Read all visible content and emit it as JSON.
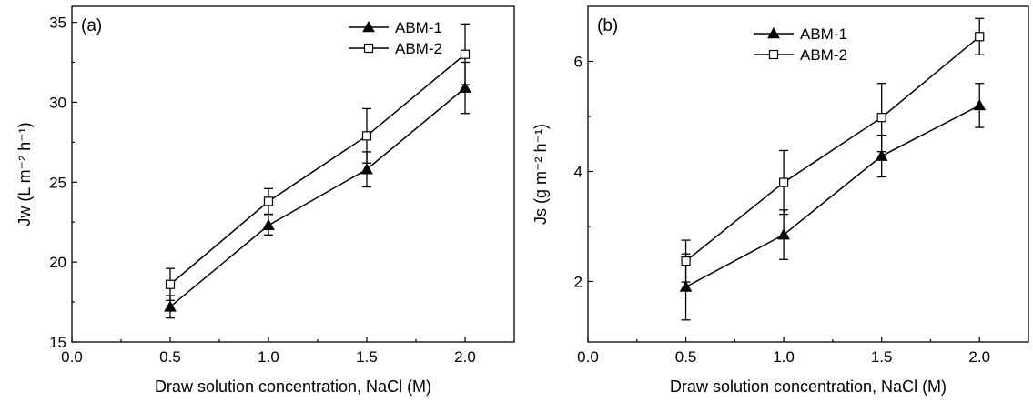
{
  "chart_data": [
    {
      "type": "line",
      "panel_label": "(a)",
      "xlabel": "Draw solution concentration, NaCl (M)",
      "ylabel": "Jw (L m⁻² h⁻¹)",
      "xlim": [
        0.0,
        2.25
      ],
      "ylim": [
        15,
        36
      ],
      "xticks": [
        0.0,
        0.5,
        1.0,
        1.5,
        2.0
      ],
      "xtick_labels": [
        "0.0",
        "0.5",
        "1.0",
        "1.5",
        "2.0"
      ],
      "yticks": [
        15,
        20,
        25,
        30,
        35
      ],
      "ytick_labels": [
        "15",
        "20",
        "25",
        "30",
        "35"
      ],
      "legend_position": "top-right",
      "series": [
        {
          "name": "ABM-1",
          "marker": "filled-triangle",
          "x": [
            0.5,
            1.0,
            1.5,
            2.0
          ],
          "y": [
            17.2,
            22.3,
            25.8,
            30.9
          ],
          "err": [
            0.7,
            0.6,
            1.1,
            1.6
          ]
        },
        {
          "name": "ABM-2",
          "marker": "open-square",
          "x": [
            0.5,
            1.0,
            1.5,
            2.0
          ],
          "y": [
            18.6,
            23.8,
            27.9,
            33.0
          ],
          "err": [
            1.0,
            0.8,
            1.7,
            1.9
          ]
        }
      ]
    },
    {
      "type": "line",
      "panel_label": "(b)",
      "xlabel": "Draw solution concentration, NaCl (M)",
      "ylabel": "Js (g m⁻² h⁻¹)",
      "xlim": [
        0.0,
        2.25
      ],
      "ylim": [
        0.9,
        7.0
      ],
      "xticks": [
        0.0,
        0.5,
        1.0,
        1.5,
        2.0
      ],
      "xtick_labels": [
        "0.0",
        "0.5",
        "1.0",
        "1.5",
        "2.0"
      ],
      "yticks": [
        2,
        4,
        6
      ],
      "ytick_labels": [
        "2",
        "4",
        "6"
      ],
      "legend_position": "top-center",
      "series": [
        {
          "name": "ABM-1",
          "marker": "filled-triangle",
          "x": [
            0.5,
            1.0,
            1.5,
            2.0
          ],
          "y": [
            1.9,
            2.85,
            4.28,
            5.2
          ],
          "err": [
            0.6,
            0.45,
            0.38,
            0.4
          ]
        },
        {
          "name": "ABM-2",
          "marker": "open-square",
          "x": [
            0.5,
            1.0,
            1.5,
            2.0
          ],
          "y": [
            2.37,
            3.8,
            4.98,
            6.45
          ],
          "err": [
            0.38,
            0.58,
            0.62,
            0.33
          ]
        }
      ]
    }
  ]
}
